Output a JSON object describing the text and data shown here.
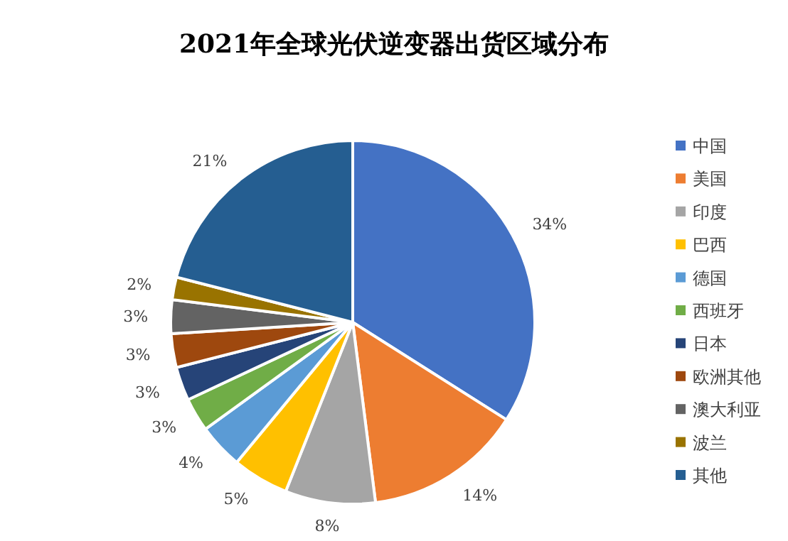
{
  "chart_data": {
    "type": "pie",
    "title": "2021年全球光伏逆变器出货区域分布",
    "categories": [
      "中国",
      "美国",
      "印度",
      "巴西",
      "德国",
      "西班牙",
      "日本",
      "欧洲其他",
      "澳大利亚",
      "波兰",
      "其他"
    ],
    "values": [
      34,
      14,
      8,
      5,
      4,
      3,
      3,
      3,
      3,
      2,
      21
    ],
    "value_labels": [
      "34%",
      "14%",
      "8%",
      "5%",
      "4%",
      "3%",
      "3%",
      "3%",
      "3%",
      "2%",
      "21%"
    ],
    "colors": [
      "#4472c4",
      "#ed7d31",
      "#a5a5a5",
      "#ffc000",
      "#5b9bd5",
      "#70ad47",
      "#264478",
      "#9e480e",
      "#636363",
      "#997300",
      "#255e91"
    ],
    "legend": "right"
  }
}
